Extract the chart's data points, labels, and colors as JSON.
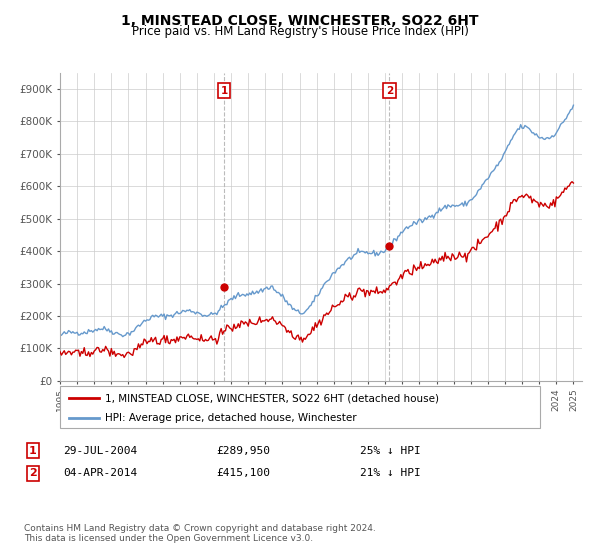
{
  "title": "1, MINSTEAD CLOSE, WINCHESTER, SO22 6HT",
  "subtitle": "Price paid vs. HM Land Registry's House Price Index (HPI)",
  "xlim_start": 1995.0,
  "xlim_end": 2025.5,
  "ylim_min": 0,
  "ylim_max": 950000,
  "yticks": [
    0,
    100000,
    200000,
    300000,
    400000,
    500000,
    600000,
    700000,
    800000,
    900000
  ],
  "ytick_labels": [
    "£0",
    "£100K",
    "£200K",
    "£300K",
    "£400K",
    "£500K",
    "£600K",
    "£700K",
    "£800K",
    "£900K"
  ],
  "xticks": [
    1995,
    1996,
    1997,
    1998,
    1999,
    2000,
    2001,
    2002,
    2003,
    2004,
    2005,
    2006,
    2007,
    2008,
    2009,
    2010,
    2011,
    2012,
    2013,
    2014,
    2015,
    2016,
    2017,
    2018,
    2019,
    2020,
    2021,
    2022,
    2023,
    2024,
    2025
  ],
  "hpi_color": "#6699cc",
  "price_color": "#cc0000",
  "marker1_x": 2004.58,
  "marker1_y": 289950,
  "marker2_x": 2014.25,
  "marker2_y": 415100,
  "vline1_x": 2004.58,
  "vline2_x": 2014.25,
  "legend_line1": "1, MINSTEAD CLOSE, WINCHESTER, SO22 6HT (detached house)",
  "legend_line2": "HPI: Average price, detached house, Winchester",
  "annotation1_num": "1",
  "annotation1_date": "29-JUL-2004",
  "annotation1_price": "£289,950",
  "annotation1_hpi": "25% ↓ HPI",
  "annotation2_num": "2",
  "annotation2_date": "04-APR-2014",
  "annotation2_price": "£415,100",
  "annotation2_hpi": "21% ↓ HPI",
  "footnote": "Contains HM Land Registry data © Crown copyright and database right 2024.\nThis data is licensed under the Open Government Licence v3.0.",
  "bg_color": "#ffffff",
  "grid_color": "#cccccc"
}
